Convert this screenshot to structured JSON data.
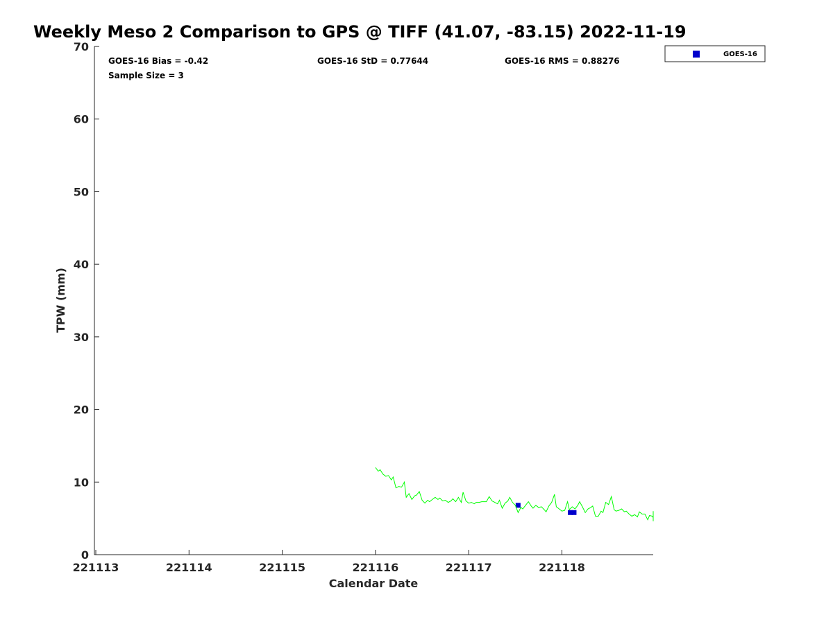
{
  "chart_data": {
    "type": "line",
    "title": "Weekly Meso 2 Comparison to GPS @ TIFF (41.07, -83.15) 2022-11-19",
    "xlabel": "Calendar Date",
    "ylabel": "TPW (mm)",
    "xlim": [
      221113,
      221119
    ],
    "ylim": [
      0,
      70
    ],
    "x_ticks": [
      {
        "x": 221113,
        "label": "221113"
      },
      {
        "x": 221114,
        "label": "221114"
      },
      {
        "x": 221115,
        "label": "221115"
      },
      {
        "x": 221116,
        "label": "221116"
      },
      {
        "x": 221117,
        "label": "221117"
      },
      {
        "x": 221118,
        "label": "221118"
      }
    ],
    "y_ticks": [
      0,
      10,
      20,
      30,
      40,
      50,
      60,
      70
    ],
    "grid": false,
    "legend_position": "top-right",
    "stats": {
      "bias": "GOES-16 Bias = -0.42",
      "std": "GOES-16 StD = 0.77644",
      "rms": "GOES-16 RMS = 0.88276",
      "sample": "Sample Size = 3"
    },
    "series": [
      {
        "name": "GOES-16",
        "type": "scatter",
        "color": "#0000cc",
        "marker": "square",
        "legend": true,
        "points": [
          [
            221117.53,
            6.8
          ],
          [
            221118.09,
            5.8
          ],
          [
            221118.13,
            5.8
          ]
        ]
      },
      {
        "type": "line",
        "color": "#00ff00",
        "legend": false,
        "points": [
          [
            221116.0,
            12.0
          ],
          [
            221116.03,
            11.5
          ],
          [
            221116.05,
            11.7
          ],
          [
            221116.08,
            11.1
          ],
          [
            221116.11,
            10.8
          ],
          [
            221116.14,
            10.9
          ],
          [
            221116.17,
            10.3
          ],
          [
            221116.19,
            10.7
          ],
          [
            221116.22,
            9.2
          ],
          [
            221116.25,
            9.4
          ],
          [
            221116.28,
            9.3
          ],
          [
            221116.31,
            10.0
          ],
          [
            221116.33,
            7.9
          ],
          [
            221116.36,
            8.4
          ],
          [
            221116.39,
            7.6
          ],
          [
            221116.42,
            8.1
          ],
          [
            221116.44,
            8.2
          ],
          [
            221116.47,
            8.7
          ],
          [
            221116.5,
            7.5
          ],
          [
            221116.53,
            7.1
          ],
          [
            221116.56,
            7.5
          ],
          [
            221116.58,
            7.3
          ],
          [
            221116.61,
            7.6
          ],
          [
            221116.64,
            7.9
          ],
          [
            221116.67,
            7.6
          ],
          [
            221116.69,
            7.8
          ],
          [
            221116.72,
            7.4
          ],
          [
            221116.75,
            7.5
          ],
          [
            221116.78,
            7.2
          ],
          [
            221116.81,
            7.4
          ],
          [
            221116.83,
            7.7
          ],
          [
            221116.86,
            7.3
          ],
          [
            221116.89,
            7.9
          ],
          [
            221116.92,
            7.2
          ],
          [
            221116.94,
            8.6
          ],
          [
            221116.97,
            7.4
          ],
          [
            221117.0,
            7.1
          ],
          [
            221117.03,
            7.2
          ],
          [
            221117.06,
            7.0
          ],
          [
            221117.08,
            7.2
          ],
          [
            221117.11,
            7.2
          ],
          [
            221117.14,
            7.3
          ],
          [
            221117.17,
            7.3
          ],
          [
            221117.19,
            7.3
          ],
          [
            221117.22,
            8.0
          ],
          [
            221117.25,
            7.4
          ],
          [
            221117.28,
            7.2
          ],
          [
            221117.31,
            7.0
          ],
          [
            221117.33,
            7.5
          ],
          [
            221117.36,
            6.4
          ],
          [
            221117.39,
            7.1
          ],
          [
            221117.42,
            7.4
          ],
          [
            221117.44,
            7.9
          ],
          [
            221117.47,
            7.2
          ],
          [
            221117.5,
            6.8
          ],
          [
            221117.53,
            5.8
          ],
          [
            221117.56,
            6.5
          ],
          [
            221117.58,
            6.3
          ],
          [
            221117.61,
            6.8
          ],
          [
            221117.64,
            7.3
          ],
          [
            221117.67,
            6.7
          ],
          [
            221117.69,
            6.4
          ],
          [
            221117.72,
            6.8
          ],
          [
            221117.75,
            6.5
          ],
          [
            221117.78,
            6.6
          ],
          [
            221117.81,
            6.2
          ],
          [
            221117.83,
            5.9
          ],
          [
            221117.86,
            6.7
          ],
          [
            221117.89,
            7.2
          ],
          [
            221117.92,
            8.3
          ],
          [
            221117.94,
            6.6
          ],
          [
            221117.97,
            6.3
          ],
          [
            221118.0,
            6.0
          ],
          [
            221118.03,
            6.1
          ],
          [
            221118.06,
            7.3
          ],
          [
            221118.08,
            6.2
          ],
          [
            221118.11,
            6.6
          ],
          [
            221118.14,
            6.3
          ],
          [
            221118.17,
            6.8
          ],
          [
            221118.19,
            7.3
          ],
          [
            221118.22,
            6.6
          ],
          [
            221118.25,
            5.8
          ],
          [
            221118.28,
            6.3
          ],
          [
            221118.31,
            6.5
          ],
          [
            221118.33,
            6.7
          ],
          [
            221118.36,
            5.3
          ],
          [
            221118.39,
            5.3
          ],
          [
            221118.42,
            6.0
          ],
          [
            221118.44,
            5.8
          ],
          [
            221118.47,
            7.2
          ],
          [
            221118.5,
            6.9
          ],
          [
            221118.53,
            8.0
          ],
          [
            221118.56,
            6.2
          ],
          [
            221118.58,
            6.0
          ],
          [
            221118.61,
            6.1
          ],
          [
            221118.64,
            6.3
          ],
          [
            221118.67,
            5.9
          ],
          [
            221118.69,
            6.0
          ],
          [
            221118.72,
            5.6
          ],
          [
            221118.75,
            5.3
          ],
          [
            221118.78,
            5.5
          ],
          [
            221118.81,
            5.2
          ],
          [
            221118.83,
            5.9
          ],
          [
            221118.86,
            5.6
          ],
          [
            221118.89,
            5.6
          ],
          [
            221118.92,
            4.8
          ],
          [
            221118.94,
            5.4
          ],
          [
            221118.97,
            5.3
          ],
          [
            221119.0,
            5.1
          ],
          [
            221119.03,
            6.0
          ],
          [
            221119.06,
            4.6
          ]
        ]
      }
    ]
  }
}
